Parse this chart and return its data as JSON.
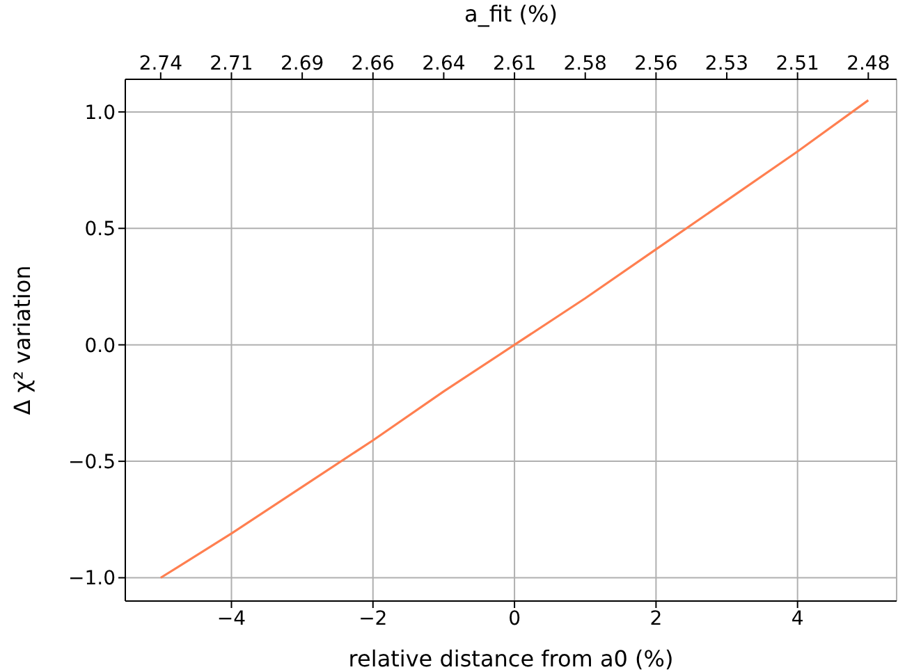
{
  "chart_data": {
    "type": "line",
    "xlabel": "relative distance from a0 (%)",
    "ylabel": "Δ χ² variation",
    "x2label": "a_fit (%)",
    "x": [
      -5,
      -4,
      -3,
      -2,
      -1,
      0,
      1,
      2,
      3,
      4,
      5
    ],
    "series": [
      {
        "color": "#ff7f50",
        "values": [
          -1.0,
          -0.81,
          -0.61,
          -0.41,
          -0.2,
          0,
          0.2,
          0.41,
          0.62,
          0.83,
          1.05
        ]
      }
    ],
    "xlim": [
      -5.5,
      5.4
    ],
    "xticks": [
      -4,
      -2,
      0,
      2,
      4
    ],
    "ylim": [
      -1.1,
      1.14
    ],
    "yticks": [
      {
        "value": -1,
        "label": "−1.0"
      },
      {
        "value": -0.5,
        "label": "−0.5"
      },
      {
        "value": 0,
        "label": "0.0"
      },
      {
        "value": 0.5,
        "label": "0.5"
      },
      {
        "value": 1,
        "label": "1.0"
      }
    ],
    "x2lim": [
      2.75355,
      2.46906
    ],
    "x2ticks": [
      {
        "value": 2.7405,
        "label": "2.74"
      },
      {
        "value": 2.7144,
        "label": "2.71"
      },
      {
        "value": 2.6883,
        "label": "2.69"
      },
      {
        "value": 2.6622,
        "label": "2.66"
      },
      {
        "value": 2.6361,
        "label": "2.64"
      },
      {
        "value": 2.61,
        "label": "2.61"
      },
      {
        "value": 2.5839,
        "label": "2.58"
      },
      {
        "value": 2.5578,
        "label": "2.56"
      },
      {
        "value": 2.5317,
        "label": "2.53"
      },
      {
        "value": 2.5056,
        "label": "2.51"
      },
      {
        "value": 2.4795,
        "label": "2.48"
      }
    ],
    "grid": true,
    "marker": "none",
    "line_style": "solid"
  }
}
